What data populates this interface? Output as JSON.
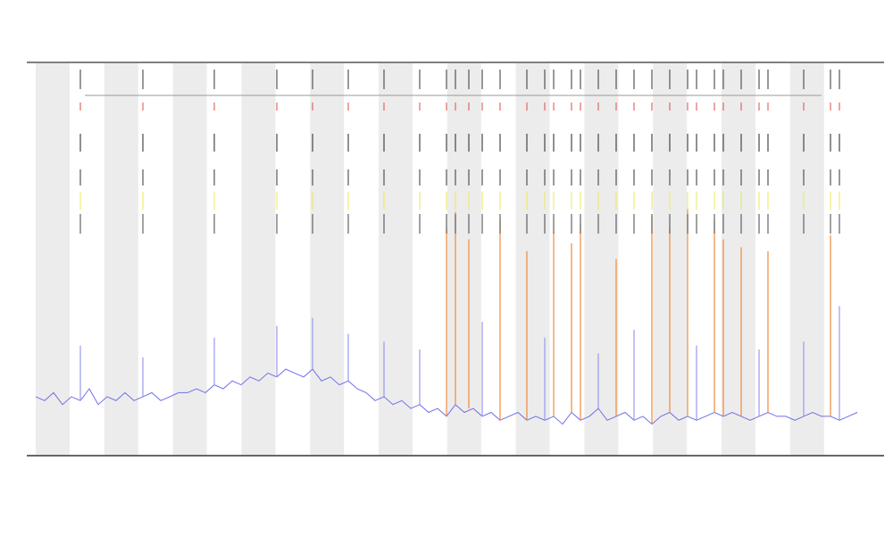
{
  "chart_data": {
    "type": "line",
    "xlim": [
      0,
      92
    ],
    "ylim": [
      0,
      100
    ],
    "series": [
      {
        "color": "#6f6fe8",
        "x": [
          0,
          1,
          2,
          3,
          4,
          5,
          6,
          7,
          8,
          9,
          10,
          11,
          12,
          13,
          14,
          15,
          16,
          17,
          18,
          19,
          20,
          21,
          22,
          23,
          24,
          25,
          26,
          27,
          28,
          29,
          30,
          31,
          32,
          33,
          34,
          35,
          36,
          37,
          38,
          39,
          40,
          41,
          42,
          43,
          44,
          45,
          46,
          47,
          48,
          49,
          50,
          51,
          52,
          53,
          54,
          55,
          56,
          57,
          58,
          59,
          60,
          61,
          62,
          63,
          64,
          65,
          66,
          67,
          68,
          69,
          70,
          71,
          72,
          73,
          74,
          75,
          76,
          77,
          78,
          79,
          80,
          81,
          82,
          83,
          84,
          85,
          86,
          87,
          88,
          89,
          90,
          91,
          92
        ],
        "values": [
          15,
          14,
          16,
          13,
          15,
          14,
          17,
          13,
          15,
          14,
          16,
          14,
          15,
          16,
          14,
          15,
          16,
          16,
          17,
          16,
          18,
          17,
          19,
          18,
          20,
          19,
          21,
          20,
          22,
          21,
          20,
          22,
          19,
          20,
          18,
          19,
          17,
          16,
          14,
          15,
          13,
          14,
          12,
          13,
          11,
          12,
          10,
          13,
          11,
          12,
          10,
          11,
          9,
          10,
          11,
          9,
          10,
          9,
          10,
          8,
          11,
          9,
          10,
          12,
          9,
          10,
          11,
          9,
          10,
          8,
          10,
          11,
          9,
          10,
          9,
          10,
          11,
          10,
          11,
          10,
          9,
          10,
          11,
          10,
          10,
          9,
          10,
          11,
          10,
          10,
          9,
          10,
          11
        ]
      },
      {
        "color": "#f08a3c",
        "x": [
          46,
          47,
          48.5,
          52,
          55,
          58,
          60,
          61,
          65,
          69,
          71,
          73,
          76,
          77,
          79,
          82,
          89
        ],
        "values": [
          58,
          62,
          55,
          60,
          52,
          57,
          54,
          59,
          50,
          61,
          58,
          63,
          60,
          55,
          53,
          52,
          56
        ]
      },
      {
        "color": "#9a9af0",
        "x": [
          5,
          12,
          20,
          27,
          31,
          35,
          39,
          43,
          50,
          57,
          63,
          67,
          74,
          81,
          86,
          90
        ],
        "values": [
          28,
          25,
          30,
          33,
          35,
          31,
          29,
          27,
          34,
          30,
          26,
          32,
          28,
          27,
          29,
          38
        ]
      }
    ],
    "grid": true
  }
}
